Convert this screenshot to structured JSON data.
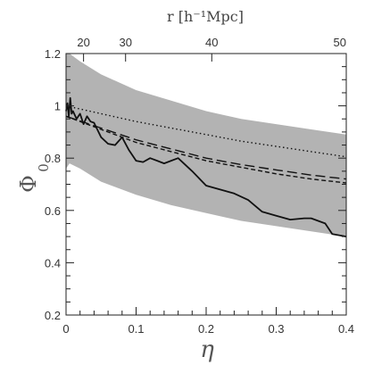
{
  "chart_data": {
    "type": "line",
    "xlabel": "η",
    "ylabel": "Φ",
    "ylabel_sub": "0",
    "top_axis_label": "r [h⁻¹Mpc]",
    "xlim": [
      0,
      0.4
    ],
    "ylim": [
      0.2,
      1.2
    ],
    "x_ticks": [
      0,
      0.1,
      0.2,
      0.3,
      0.4
    ],
    "x_tick_labels": [
      "0",
      "0.1",
      "0.2",
      "0.3",
      "0.4"
    ],
    "y_ticks": [
      0.2,
      0.4,
      0.6,
      0.8,
      1.0,
      1.2
    ],
    "y_tick_labels": [
      "0.2",
      "0.4",
      "0.6",
      "0.8",
      "1",
      "1.2"
    ],
    "top_ticks": [
      {
        "label": "20",
        "eta": 0.025
      },
      {
        "label": "30",
        "eta": 0.085
      },
      {
        "label": "40",
        "eta": 0.208
      },
      {
        "label": "50",
        "eta": 0.4
      }
    ],
    "band": {
      "x": [
        0,
        0.005,
        0.02,
        0.05,
        0.1,
        0.15,
        0.2,
        0.25,
        0.3,
        0.35,
        0.4
      ],
      "upper": [
        1.2,
        1.2,
        1.17,
        1.12,
        1.06,
        1.02,
        0.98,
        0.95,
        0.93,
        0.91,
        0.89
      ],
      "lower": [
        0.76,
        0.78,
        0.76,
        0.71,
        0.66,
        0.62,
        0.59,
        0.56,
        0.54,
        0.52,
        0.5
      ]
    },
    "series": [
      {
        "style": "dotted",
        "x": [
          0,
          0.05,
          0.1,
          0.15,
          0.2,
          0.25,
          0.3,
          0.35,
          0.4
        ],
        "y": [
          1.0,
          0.97,
          0.94,
          0.915,
          0.89,
          0.865,
          0.845,
          0.825,
          0.805
        ]
      },
      {
        "style": "long-dash",
        "x": [
          0,
          0.05,
          0.1,
          0.15,
          0.2,
          0.25,
          0.3,
          0.35,
          0.4
        ],
        "y": [
          0.96,
          0.915,
          0.87,
          0.835,
          0.8,
          0.775,
          0.755,
          0.735,
          0.72
        ]
      },
      {
        "style": "short-dash",
        "x": [
          0,
          0.05,
          0.1,
          0.15,
          0.2,
          0.25,
          0.3,
          0.35,
          0.4
        ],
        "y": [
          0.96,
          0.91,
          0.86,
          0.825,
          0.79,
          0.765,
          0.74,
          0.72,
          0.705
        ]
      },
      {
        "style": "solid",
        "x": [
          0,
          0.002,
          0.004,
          0.006,
          0.008,
          0.01,
          0.015,
          0.02,
          0.025,
          0.03,
          0.035,
          0.04,
          0.05,
          0.06,
          0.07,
          0.08,
          0.09,
          0.1,
          0.11,
          0.12,
          0.13,
          0.14,
          0.15,
          0.16,
          0.18,
          0.2,
          0.22,
          0.24,
          0.26,
          0.28,
          0.3,
          0.32,
          0.34,
          0.35,
          0.37,
          0.38,
          0.4
        ],
        "y": [
          0.98,
          1.01,
          0.96,
          1.03,
          0.97,
          0.98,
          0.95,
          0.97,
          0.93,
          0.96,
          0.94,
          0.935,
          0.88,
          0.855,
          0.85,
          0.88,
          0.83,
          0.79,
          0.785,
          0.8,
          0.79,
          0.78,
          0.79,
          0.8,
          0.75,
          0.695,
          0.68,
          0.665,
          0.64,
          0.595,
          0.58,
          0.565,
          0.57,
          0.57,
          0.55,
          0.51,
          0.5
        ]
      }
    ],
    "colors": {
      "band": "#b3b3b3",
      "line": "#111111"
    }
  }
}
